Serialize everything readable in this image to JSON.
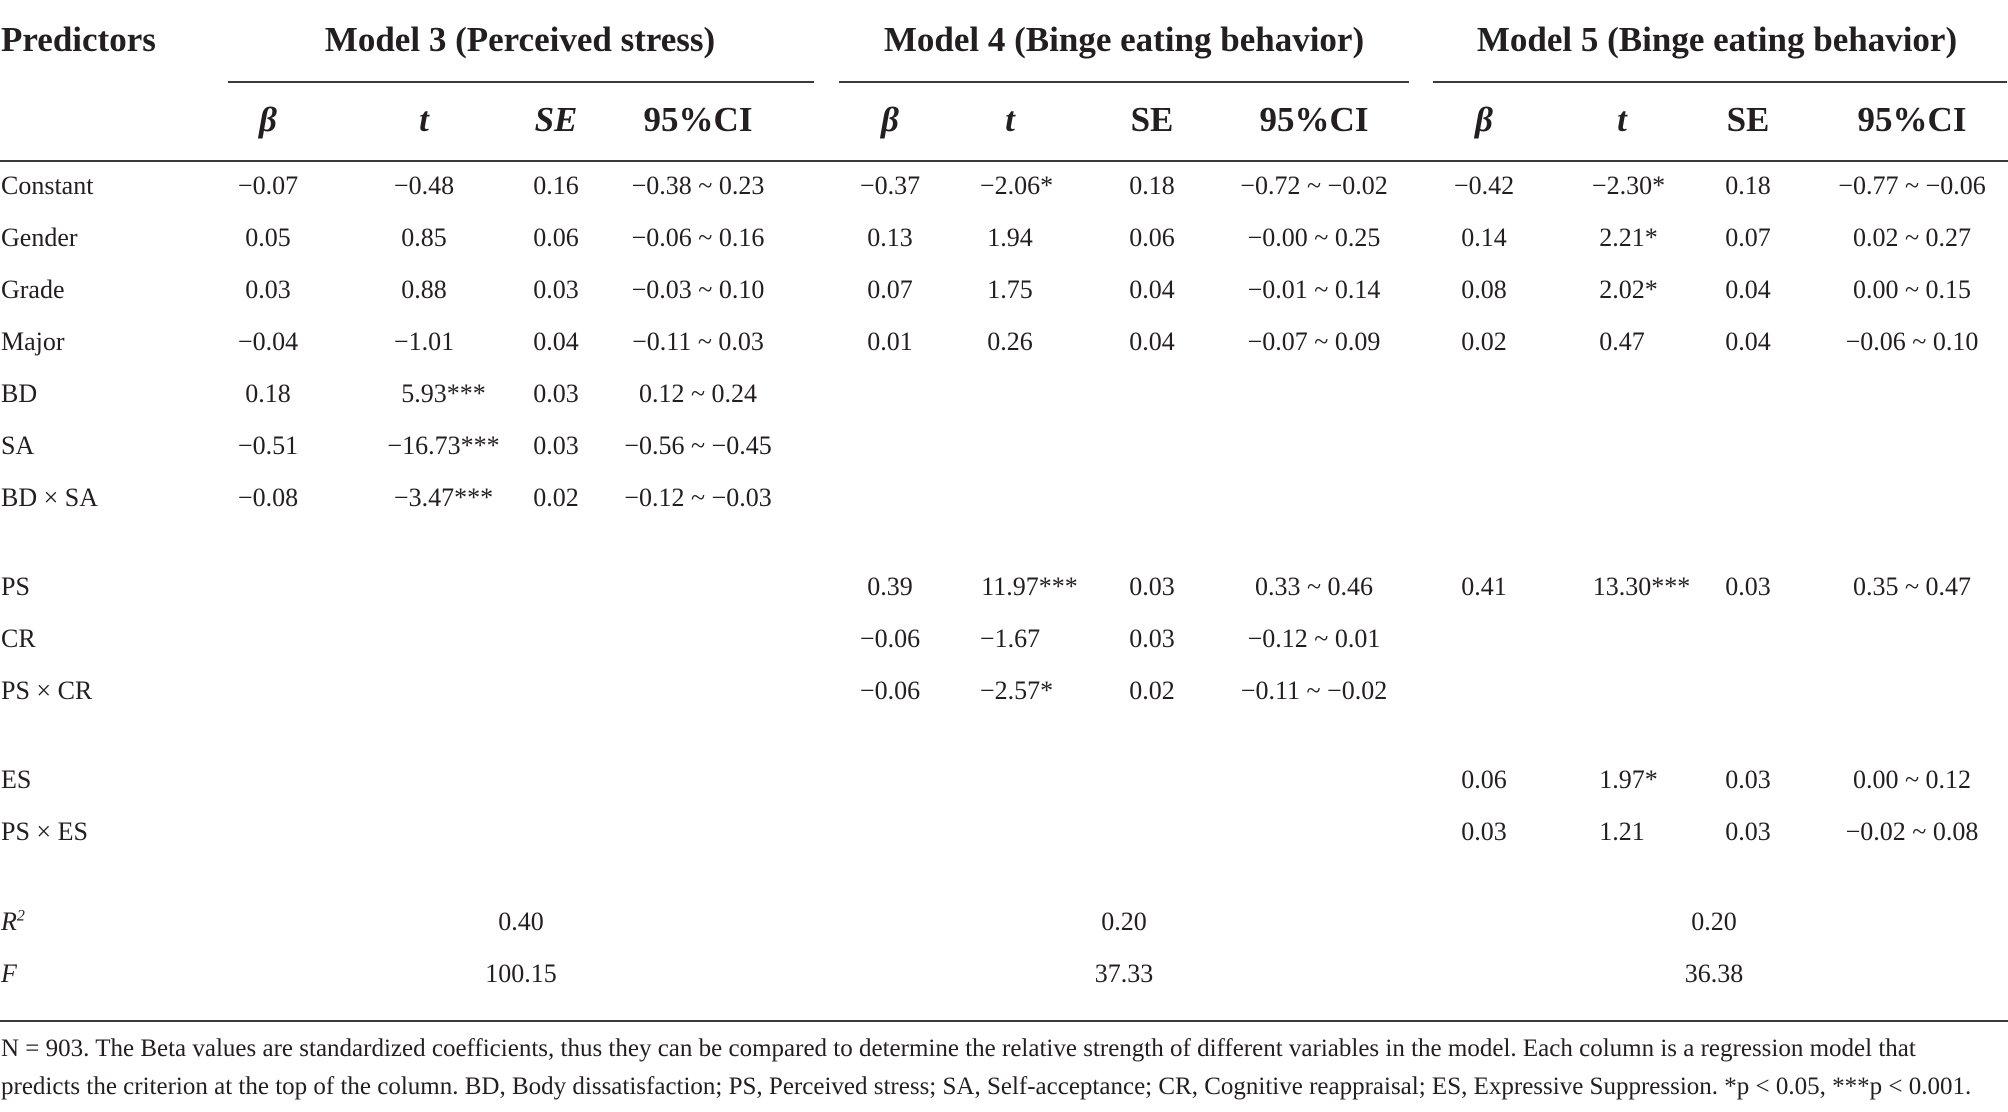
{
  "header": {
    "predictors": "Predictors",
    "models": [
      "Model 3 (Perceived stress)",
      "Model 4 (Binge eating behavior)",
      "Model 5 (Binge eating behavior)"
    ],
    "subcols": [
      "β",
      "t",
      "SE",
      "95%CI"
    ]
  },
  "rows": [
    {
      "label": "Constant",
      "m3": [
        [
          "−0.07",
          ""
        ],
        [
          "−0.48",
          ""
        ],
        [
          "0.16",
          ""
        ],
        [
          "−0.38 ~ 0.23",
          ""
        ]
      ],
      "m4": [
        [
          "−0.37",
          ""
        ],
        [
          "−2.06",
          "*"
        ],
        [
          "0.18",
          ""
        ],
        [
          "−0.72 ~ −0.02",
          ""
        ]
      ],
      "m5": [
        [
          "−0.42",
          ""
        ],
        [
          "−2.30",
          "*"
        ],
        [
          "0.18",
          ""
        ],
        [
          "−0.77 ~ −0.06",
          ""
        ]
      ]
    },
    {
      "label": "Gender",
      "m3": [
        [
          "0.05",
          ""
        ],
        [
          "0.85",
          ""
        ],
        [
          "0.06",
          ""
        ],
        [
          "−0.06 ~ 0.16",
          ""
        ]
      ],
      "m4": [
        [
          "0.13",
          ""
        ],
        [
          "1.94",
          ""
        ],
        [
          "0.06",
          ""
        ],
        [
          "−0.00 ~ 0.25",
          ""
        ]
      ],
      "m5": [
        [
          "0.14",
          ""
        ],
        [
          "2.21",
          "*"
        ],
        [
          "0.07",
          ""
        ],
        [
          "0.02 ~ 0.27",
          ""
        ]
      ]
    },
    {
      "label": "Grade",
      "m3": [
        [
          "0.03",
          ""
        ],
        [
          "0.88",
          ""
        ],
        [
          "0.03",
          ""
        ],
        [
          "−0.03 ~ 0.10",
          ""
        ]
      ],
      "m4": [
        [
          "0.07",
          ""
        ],
        [
          "1.75",
          ""
        ],
        [
          "0.04",
          ""
        ],
        [
          "−0.01 ~ 0.14",
          ""
        ]
      ],
      "m5": [
        [
          "0.08",
          ""
        ],
        [
          "2.02",
          "*"
        ],
        [
          "0.04",
          ""
        ],
        [
          "0.00 ~ 0.15",
          ""
        ]
      ]
    },
    {
      "label": "Major",
      "m3": [
        [
          "−0.04",
          ""
        ],
        [
          "−1.01",
          ""
        ],
        [
          "0.04",
          ""
        ],
        [
          "−0.11 ~ 0.03",
          ""
        ]
      ],
      "m4": [
        [
          "0.01",
          ""
        ],
        [
          "0.26",
          ""
        ],
        [
          "0.04",
          ""
        ],
        [
          "−0.07 ~ 0.09",
          ""
        ]
      ],
      "m5": [
        [
          "0.02",
          ""
        ],
        [
          "0.47",
          ""
        ],
        [
          "0.04",
          ""
        ],
        [
          "−0.06 ~ 0.10",
          ""
        ]
      ]
    },
    {
      "label": "BD",
      "m3": [
        [
          "0.18",
          ""
        ],
        [
          "5.93",
          "***"
        ],
        [
          "0.03",
          ""
        ],
        [
          "0.12 ~ 0.24",
          ""
        ]
      ]
    },
    {
      "label": "SA",
      "m3": [
        [
          "−0.51",
          ""
        ],
        [
          "−16.73",
          "***"
        ],
        [
          "0.03",
          ""
        ],
        [
          "−0.56 ~ −0.45",
          ""
        ]
      ]
    },
    {
      "label": "BD × SA",
      "m3": [
        [
          "−0.08",
          ""
        ],
        [
          "−3.47",
          "***"
        ],
        [
          "0.02",
          ""
        ],
        [
          "−0.12 ~ −0.03",
          ""
        ]
      ]
    },
    {
      "label": "PS",
      "m4": [
        [
          "0.39",
          ""
        ],
        [
          "11.97",
          "***"
        ],
        [
          "0.03",
          ""
        ],
        [
          "0.33 ~ 0.46",
          ""
        ]
      ],
      "m5": [
        [
          "0.41",
          ""
        ],
        [
          "13.30",
          "***"
        ],
        [
          "0.03",
          ""
        ],
        [
          "0.35 ~ 0.47",
          ""
        ]
      ]
    },
    {
      "label": "CR",
      "m4": [
        [
          "−0.06",
          ""
        ],
        [
          "−1.67",
          ""
        ],
        [
          "0.03",
          ""
        ],
        [
          "−0.12 ~ 0.01",
          ""
        ]
      ]
    },
    {
      "label": "PS × CR",
      "m4": [
        [
          "−0.06",
          ""
        ],
        [
          "−2.57",
          "*"
        ],
        [
          "0.02",
          ""
        ],
        [
          "−0.11 ~ −0.02",
          ""
        ]
      ]
    },
    {
      "label": "ES",
      "m5": [
        [
          "0.06",
          ""
        ],
        [
          "1.97",
          "*"
        ],
        [
          "0.03",
          ""
        ],
        [
          "0.00 ~ 0.12",
          ""
        ]
      ]
    },
    {
      "label": "PS × ES",
      "m5": [
        [
          "0.03",
          ""
        ],
        [
          "1.21",
          ""
        ],
        [
          "0.03",
          ""
        ],
        [
          "−0.02 ~ 0.08",
          ""
        ]
      ]
    }
  ],
  "summary": {
    "r2": {
      "label": "R",
      "sup": "2",
      "values": [
        "0.40",
        "0.20",
        "0.20"
      ]
    },
    "f": {
      "label": "F",
      "values": [
        "100.15",
        "37.33",
        "36.38"
      ]
    }
  },
  "note": "N = 903. The Beta values are standardized coefficients, thus they can be compared to determine the relative strength of different variables in the model. Each column is a regression model that predicts the criterion at the top of the column. BD, Body dissatisfaction; PS, Perceived stress; SA, Self-acceptance; CR, Cognitive reappraisal; ES, Expressive Suppression. *p < 0.05, ***p < 0.001."
}
